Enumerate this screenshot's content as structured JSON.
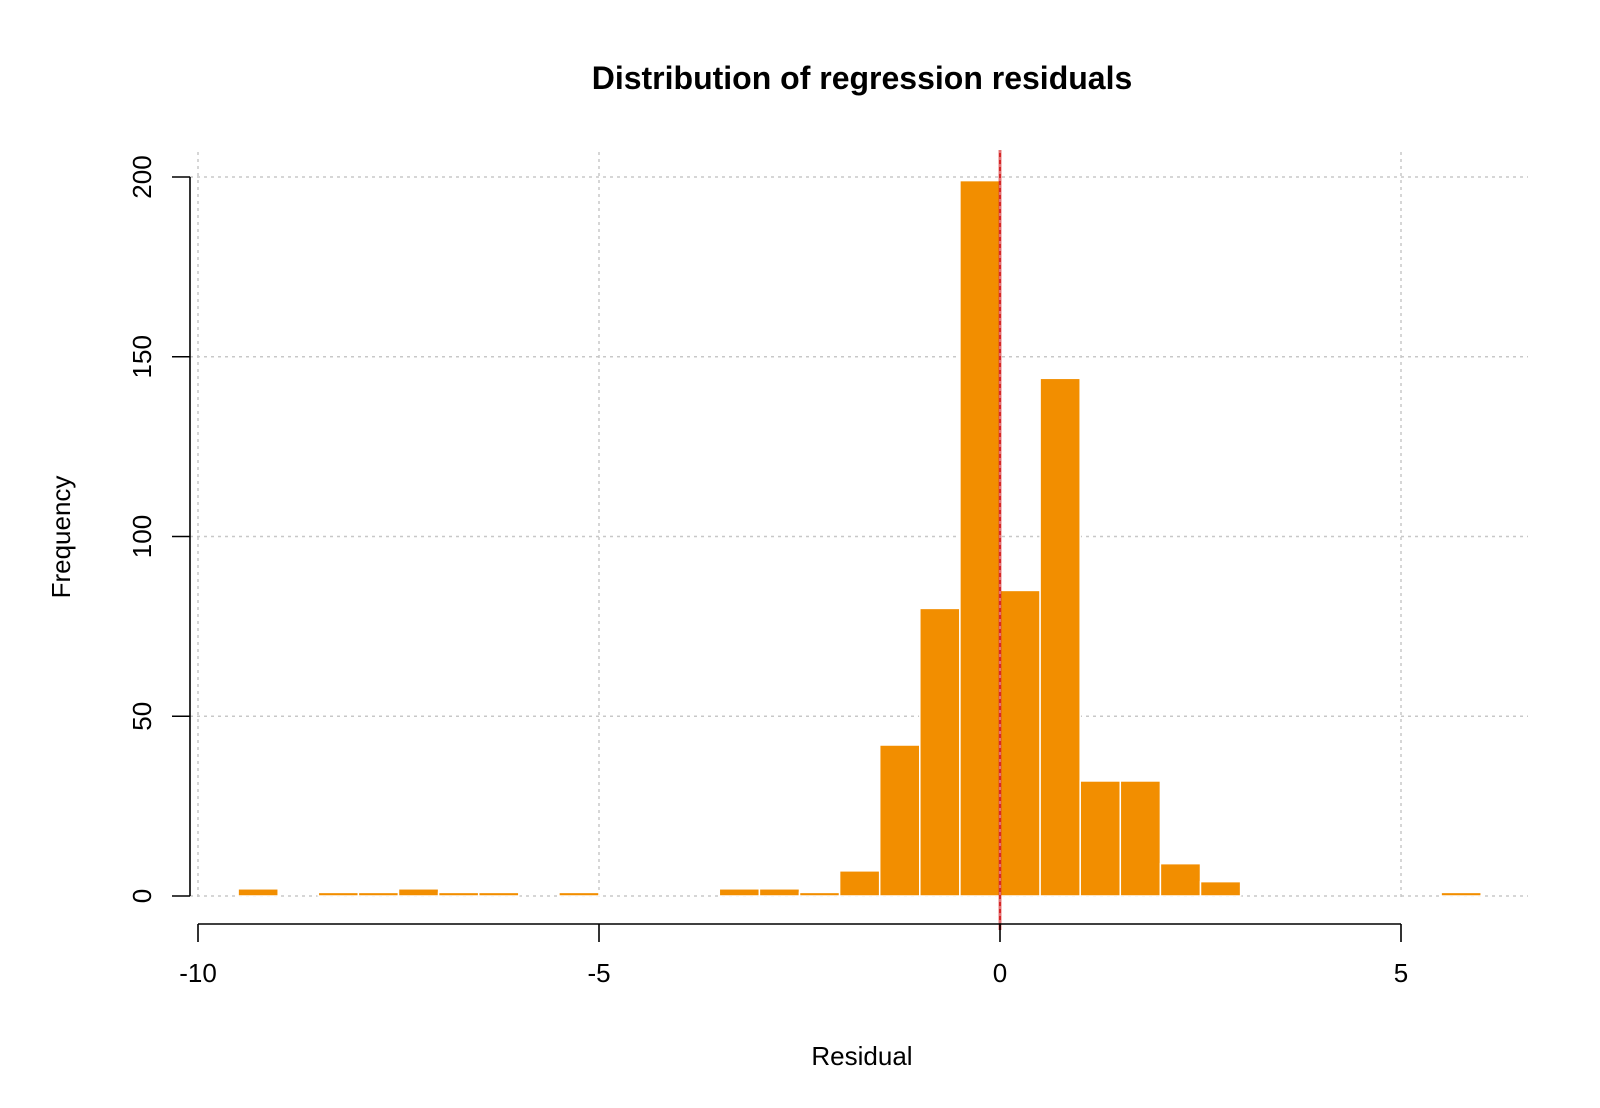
{
  "chart_data": {
    "type": "bar",
    "title": "Distribution of regression residuals",
    "xlabel": "Residual",
    "ylabel": "Frequency",
    "xlim": [
      -10,
      6.5
    ],
    "ylim": [
      0,
      200
    ],
    "x_ticks": [
      -10,
      -5,
      0,
      5
    ],
    "x_tick_labels": [
      "-10",
      "-5",
      "0",
      "5"
    ],
    "y_ticks": [
      0,
      50,
      100,
      150,
      200
    ],
    "y_tick_labels": [
      "0",
      "50",
      "100",
      "150",
      "200"
    ],
    "grid": true,
    "bin_width": 0.5,
    "bins": [
      {
        "start": -9.5,
        "end": -9.0,
        "count": 2
      },
      {
        "start": -9.0,
        "end": -8.5,
        "count": 0
      },
      {
        "start": -8.5,
        "end": -8.0,
        "count": 1
      },
      {
        "start": -8.0,
        "end": -7.5,
        "count": 1
      },
      {
        "start": -7.5,
        "end": -7.0,
        "count": 2
      },
      {
        "start": -7.0,
        "end": -6.5,
        "count": 1
      },
      {
        "start": -6.5,
        "end": -6.0,
        "count": 1
      },
      {
        "start": -6.0,
        "end": -5.5,
        "count": 0
      },
      {
        "start": -5.5,
        "end": -5.0,
        "count": 1
      },
      {
        "start": -5.0,
        "end": -4.5,
        "count": 0
      },
      {
        "start": -4.5,
        "end": -4.0,
        "count": 0
      },
      {
        "start": -4.0,
        "end": -3.5,
        "count": 0
      },
      {
        "start": -3.5,
        "end": -3.0,
        "count": 2
      },
      {
        "start": -3.0,
        "end": -2.5,
        "count": 2
      },
      {
        "start": -2.5,
        "end": -2.0,
        "count": 1
      },
      {
        "start": -2.0,
        "end": -1.5,
        "count": 7
      },
      {
        "start": -1.5,
        "end": -1.0,
        "count": 42
      },
      {
        "start": -1.0,
        "end": -0.5,
        "count": 80
      },
      {
        "start": -0.5,
        "end": 0.0,
        "count": 199
      },
      {
        "start": 0.0,
        "end": 0.5,
        "count": 85
      },
      {
        "start": 0.5,
        "end": 1.0,
        "count": 144
      },
      {
        "start": 1.0,
        "end": 1.5,
        "count": 32
      },
      {
        "start": 1.5,
        "end": 2.0,
        "count": 32
      },
      {
        "start": 2.0,
        "end": 2.5,
        "count": 9
      },
      {
        "start": 2.5,
        "end": 3.0,
        "count": 4
      },
      {
        "start": 3.0,
        "end": 3.5,
        "count": 0
      },
      {
        "start": 3.5,
        "end": 4.0,
        "count": 0
      },
      {
        "start": 4.0,
        "end": 4.5,
        "count": 0
      },
      {
        "start": 4.5,
        "end": 5.0,
        "count": 0
      },
      {
        "start": 5.0,
        "end": 5.5,
        "count": 0
      },
      {
        "start": 5.5,
        "end": 6.0,
        "count": 1
      }
    ],
    "reference_line": {
      "x": 0
    },
    "colors": {
      "bar_fill": "#f28e00",
      "bar_edge": "#ffffff",
      "reference_line": "#d62728",
      "grid": "#c8c8c8",
      "axis": "#000000",
      "background": "#ffffff"
    }
  }
}
